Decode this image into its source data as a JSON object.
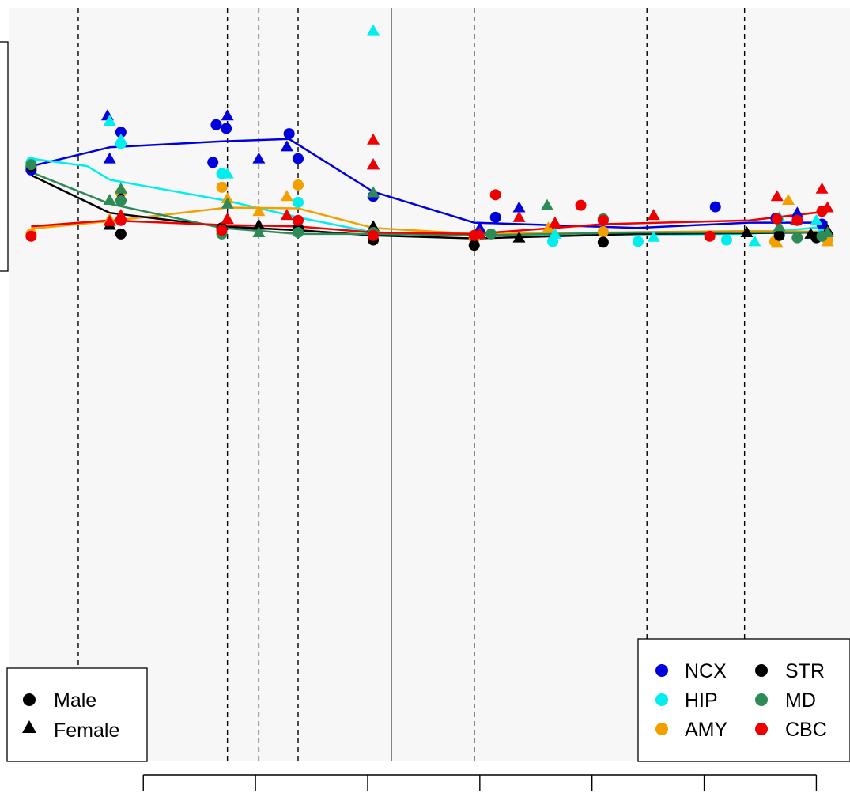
{
  "chart_data": {
    "type": "scatter",
    "title": "",
    "xlabel": "",
    "ylabel": "",
    "x_scale": "log",
    "xlim": [
      -3.2,
      4.3
    ],
    "ylim": [
      0,
      10
    ],
    "x_ticks": [
      -2,
      -1,
      0,
      1,
      2,
      3,
      4
    ],
    "x_tick_labels": [
      "",
      "",
      "",
      "",
      "",
      "",
      ""
    ],
    "background": "#f7f7f7",
    "vlines_dashed": [
      -2.58,
      -1.25,
      -0.97,
      -0.62,
      0.95,
      2.49,
      3.36
    ],
    "vline_solid": 0.21,
    "series": [
      {
        "name": "NCX",
        "color": "#0000dd",
        "male": [
          [
            -3.0,
            7.85
          ],
          [
            -2.2,
            8.35
          ],
          [
            -1.38,
            7.95
          ],
          [
            -1.35,
            8.45
          ],
          [
            -1.26,
            8.4
          ],
          [
            -0.7,
            8.33
          ],
          [
            -0.62,
            8.0
          ],
          [
            0.05,
            7.5
          ],
          [
            1.14,
            7.22
          ],
          [
            3.1,
            7.36
          ],
          [
            3.64,
            7.21
          ],
          [
            4.05,
            7.13
          ]
        ],
        "female": [
          [
            -2.32,
            8.57
          ],
          [
            -2.3,
            8.0
          ],
          [
            -1.25,
            8.57
          ],
          [
            -0.97,
            8.0
          ],
          [
            -0.72,
            8.16
          ],
          [
            0.05,
            7.92
          ],
          [
            1.0,
            7.08
          ],
          [
            1.35,
            7.35
          ],
          [
            3.83,
            7.28
          ]
        ],
        "line": [
          [
            -3.0,
            7.9
          ],
          [
            -2.3,
            8.15
          ],
          [
            -1.3,
            8.23
          ],
          [
            -0.7,
            8.26
          ],
          [
            0.05,
            7.56
          ],
          [
            0.95,
            7.15
          ],
          [
            2.4,
            7.08
          ],
          [
            3.4,
            7.15
          ],
          [
            4.1,
            7.15
          ]
        ]
      },
      {
        "name": "HIP",
        "color": "#00eeee",
        "male": [
          [
            -3.0,
            7.95
          ],
          [
            -2.2,
            8.2
          ],
          [
            -1.3,
            7.8
          ],
          [
            -0.62,
            7.42
          ],
          [
            1.65,
            6.9
          ],
          [
            2.41,
            6.9
          ],
          [
            3.2,
            6.92
          ],
          [
            4.05,
            7.0
          ]
        ],
        "female": [
          [
            -2.3,
            8.5
          ],
          [
            -2.2,
            8.25
          ],
          [
            -1.25,
            7.8
          ],
          [
            0.05,
            9.7
          ],
          [
            1.0,
            7.0
          ],
          [
            1.67,
            7.0
          ],
          [
            2.55,
            6.96
          ],
          [
            3.45,
            6.9
          ],
          [
            3.67,
            7.22
          ],
          [
            4.0,
            7.18
          ]
        ],
        "line": [
          [
            -3.0,
            8.0
          ],
          [
            -2.5,
            7.9
          ],
          [
            -2.3,
            7.72
          ],
          [
            -1.25,
            7.44
          ],
          [
            -0.62,
            7.22
          ],
          [
            0.05,
            7.02
          ],
          [
            0.95,
            6.98
          ],
          [
            3.4,
            7.0
          ],
          [
            4.1,
            7.1
          ]
        ]
      },
      {
        "name": "AMY",
        "color": "#f2a000",
        "male": [
          [
            -3.0,
            7.0
          ],
          [
            -2.2,
            7.55
          ],
          [
            -1.3,
            7.62
          ],
          [
            -0.62,
            7.65
          ],
          [
            0.05,
            7.02
          ],
          [
            0.95,
            6.94
          ],
          [
            2.1,
            7.03
          ],
          [
            3.63,
            6.9
          ],
          [
            4.1,
            6.92
          ]
        ],
        "female": [
          [
            -2.3,
            7.2
          ],
          [
            -1.25,
            7.47
          ],
          [
            -0.97,
            7.3
          ],
          [
            -0.72,
            7.5
          ],
          [
            1.61,
            7.08
          ],
          [
            3.75,
            7.45
          ],
          [
            3.65,
            6.88
          ],
          [
            4.1,
            6.9
          ]
        ],
        "line": [
          [
            -3.0,
            7.07
          ],
          [
            -2.3,
            7.17
          ],
          [
            -1.25,
            7.35
          ],
          [
            -0.62,
            7.34
          ],
          [
            0.05,
            7.08
          ],
          [
            0.95,
            7.0
          ],
          [
            3.4,
            7.04
          ],
          [
            4.1,
            7.03
          ]
        ]
      },
      {
        "name": "STR",
        "color": "#000000",
        "male": [
          [
            -3.0,
            7.9
          ],
          [
            -2.2,
            7.0
          ],
          [
            -1.3,
            7.08
          ],
          [
            -0.62,
            7.08
          ],
          [
            0.05,
            6.92
          ],
          [
            0.95,
            6.85
          ],
          [
            2.1,
            6.89
          ],
          [
            3.67,
            6.98
          ],
          [
            4.0,
            6.95
          ]
        ],
        "female": [
          [
            -2.3,
            7.12
          ],
          [
            -2.2,
            7.5
          ],
          [
            -1.25,
            7.2
          ],
          [
            -0.97,
            7.12
          ],
          [
            0.05,
            7.1
          ],
          [
            1.35,
            6.95
          ],
          [
            3.38,
            7.02
          ],
          [
            3.95,
            7.0
          ],
          [
            4.1,
            7.05
          ]
        ],
        "line": [
          [
            -3.0,
            7.78
          ],
          [
            -2.3,
            7.28
          ],
          [
            -1.3,
            7.1
          ],
          [
            -0.62,
            7.05
          ],
          [
            0.05,
            6.98
          ],
          [
            0.95,
            6.94
          ],
          [
            2.4,
            7.0
          ],
          [
            3.4,
            7.01
          ],
          [
            4.1,
            7.02
          ]
        ]
      },
      {
        "name": "MD",
        "color": "#2e8b57",
        "male": [
          [
            -3.0,
            7.92
          ],
          [
            -2.2,
            7.44
          ],
          [
            -1.3,
            7.0
          ],
          [
            -0.62,
            7.02
          ],
          [
            0.05,
            7.02
          ],
          [
            1.1,
            7.0
          ],
          [
            2.1,
            7.2
          ],
          [
            3.83,
            6.95
          ],
          [
            4.05,
            6.97
          ]
        ],
        "female": [
          [
            -2.3,
            7.45
          ],
          [
            -2.2,
            7.6
          ],
          [
            -1.25,
            7.4
          ],
          [
            -0.97,
            7.02
          ],
          [
            0.05,
            7.55
          ],
          [
            1.6,
            7.38
          ],
          [
            3.67,
            7.1
          ],
          [
            4.1,
            7.02
          ]
        ],
        "line": [
          [
            -3.0,
            7.82
          ],
          [
            -2.3,
            7.4
          ],
          [
            -1.3,
            7.08
          ],
          [
            -0.62,
            7.0
          ],
          [
            0.05,
            7.0
          ],
          [
            0.95,
            6.98
          ],
          [
            2.4,
            7.02
          ],
          [
            3.4,
            7.02
          ],
          [
            4.1,
            7.02
          ]
        ]
      },
      {
        "name": "CBC",
        "color": "#ee0000",
        "male": [
          [
            -3.0,
            6.97
          ],
          [
            -2.2,
            7.18
          ],
          [
            -1.3,
            7.05
          ],
          [
            -0.62,
            7.18
          ],
          [
            0.05,
            6.98
          ],
          [
            0.95,
            6.98
          ],
          [
            1.14,
            7.52
          ],
          [
            1.9,
            7.38
          ],
          [
            2.1,
            7.18
          ],
          [
            3.05,
            6.97
          ],
          [
            3.65,
            7.2
          ],
          [
            3.83,
            7.18
          ],
          [
            4.05,
            7.3
          ]
        ],
        "female": [
          [
            -2.3,
            7.17
          ],
          [
            -2.2,
            7.25
          ],
          [
            -1.25,
            7.2
          ],
          [
            -0.72,
            7.25
          ],
          [
            0.05,
            8.25
          ],
          [
            0.05,
            7.92
          ],
          [
            1.0,
            7.0
          ],
          [
            1.35,
            7.22
          ],
          [
            1.67,
            7.15
          ],
          [
            2.55,
            7.25
          ],
          [
            3.65,
            7.5
          ],
          [
            3.82,
            7.18
          ],
          [
            4.05,
            7.6
          ],
          [
            4.1,
            7.35
          ]
        ],
        "line": [
          [
            -3.0,
            7.1
          ],
          [
            -2.3,
            7.18
          ],
          [
            -1.3,
            7.12
          ],
          [
            -0.62,
            7.1
          ],
          [
            0.05,
            7.02
          ],
          [
            0.95,
            7.0
          ],
          [
            2.1,
            7.13
          ],
          [
            3.4,
            7.18
          ],
          [
            4.1,
            7.3
          ]
        ]
      }
    ],
    "shape_legend": {
      "placement": "bottom-left",
      "entries": [
        {
          "label": "Male",
          "shape": "circle"
        },
        {
          "label": "Female",
          "shape": "triangle"
        }
      ]
    },
    "color_legend": {
      "placement": "bottom-right",
      "columns": 2,
      "entries": [
        {
          "label": "NCX",
          "color": "#0000dd"
        },
        {
          "label": "STR",
          "color": "#000000"
        },
        {
          "label": "HIP",
          "color": "#00eeee"
        },
        {
          "label": "MD",
          "color": "#2e8b57"
        },
        {
          "label": "AMY",
          "color": "#f2a000"
        },
        {
          "label": "CBC",
          "color": "#ee0000"
        }
      ]
    }
  }
}
